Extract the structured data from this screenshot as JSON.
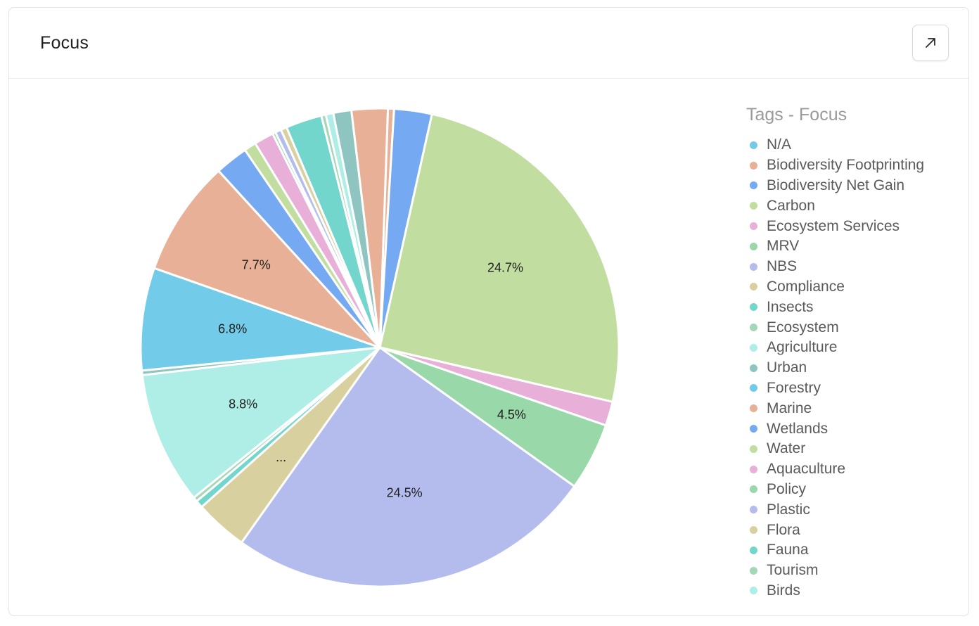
{
  "card": {
    "title": "Focus",
    "expand_icon": "arrow-up-right-icon"
  },
  "chart_data": {
    "type": "pie",
    "legend_title": "Tags - Focus",
    "legend_position": "right",
    "slices": [
      {
        "label": "Carbon",
        "value": 24.7,
        "color": "#c1dd9f",
        "display": "24.7%"
      },
      {
        "label": "Ecosystem Services",
        "value": 1.6,
        "color": "#e8b0d8",
        "display": ""
      },
      {
        "label": "MRV",
        "value": 4.5,
        "color": "#98d8a9",
        "display": "4.5%"
      },
      {
        "label": "NBS",
        "value": 24.5,
        "color": "#b4bcee",
        "display": "24.5%"
      },
      {
        "label": "Compliance",
        "value": 3.5,
        "color": "#d8d09e",
        "display": "..."
      },
      {
        "label": "Insects",
        "value": 0.5,
        "color": "#72d6cc",
        "display": ""
      },
      {
        "label": "Ecosystem",
        "value": 0.3,
        "color": "#a5d6b5",
        "display": ""
      },
      {
        "label": "Agriculture",
        "value": 8.8,
        "color": "#aeeee6",
        "display": "8.8%"
      },
      {
        "label": "Urban",
        "value": 0.3,
        "color": "#8fc5c0",
        "display": ""
      },
      {
        "label": "N/A",
        "value": 6.8,
        "color": "#71cbe9",
        "display": "6.8%"
      },
      {
        "label": "Biodiversity Footprinting",
        "value": 7.7,
        "color": "#e8b197",
        "display": "7.7%"
      },
      {
        "label": "Biodiversity Net Gain",
        "value": 2.2,
        "color": "#75aaf2",
        "display": ""
      },
      {
        "label": "Water",
        "value": 0.8,
        "color": "#c1dd9f",
        "display": ""
      },
      {
        "label": "Aquaculture",
        "value": 1.3,
        "color": "#e8b0d8",
        "display": ""
      },
      {
        "label": "Policy",
        "value": 0.2,
        "color": "#98d8a9",
        "display": ""
      },
      {
        "label": "Plastic",
        "value": 0.4,
        "color": "#b4bcee",
        "display": ""
      },
      {
        "label": "Flora",
        "value": 0.4,
        "color": "#d8d09e",
        "display": ""
      },
      {
        "label": "Fauna",
        "value": 2.4,
        "color": "#72d6cc",
        "display": ""
      },
      {
        "label": "Tourism",
        "value": 0.3,
        "color": "#a5d6b5",
        "display": ""
      },
      {
        "label": "Birds",
        "value": 0.5,
        "color": "#aeeee6",
        "display": ""
      },
      {
        "label": "Urban",
        "value": 1.2,
        "color": "#8fc5c0",
        "display": ""
      },
      {
        "label": "Marine",
        "value": 2.4,
        "color": "#e8b197",
        "display": ""
      },
      {
        "label": "Marine",
        "value": 0.4,
        "color": "#e8b197",
        "display": ""
      },
      {
        "label": "Wetlands",
        "value": 2.5,
        "color": "#75aaf2",
        "display": ""
      }
    ],
    "legend": [
      {
        "label": "N/A",
        "color": "#71cbe9"
      },
      {
        "label": "Biodiversity Footprinting",
        "color": "#e8b197"
      },
      {
        "label": "Biodiversity Net Gain",
        "color": "#75aaf2"
      },
      {
        "label": "Carbon",
        "color": "#c1dd9f"
      },
      {
        "label": "Ecosystem Services",
        "color": "#e8b0d8"
      },
      {
        "label": "MRV",
        "color": "#98d8a9"
      },
      {
        "label": "NBS",
        "color": "#b4bcee"
      },
      {
        "label": "Compliance",
        "color": "#d8d09e"
      },
      {
        "label": "Insects",
        "color": "#72d6cc"
      },
      {
        "label": "Ecosystem",
        "color": "#a5d6b5"
      },
      {
        "label": "Agriculture",
        "color": "#aeeee6"
      },
      {
        "label": "Urban",
        "color": "#8fc5c0"
      },
      {
        "label": "Forestry",
        "color": "#71cbe9"
      },
      {
        "label": "Marine",
        "color": "#e8b197"
      },
      {
        "label": "Wetlands",
        "color": "#75aaf2"
      },
      {
        "label": "Water",
        "color": "#c1dd9f"
      },
      {
        "label": "Aquaculture",
        "color": "#e8b0d8"
      },
      {
        "label": "Policy",
        "color": "#98d8a9"
      },
      {
        "label": "Plastic",
        "color": "#b4bcee"
      },
      {
        "label": "Flora",
        "color": "#d8d09e"
      },
      {
        "label": "Fauna",
        "color": "#72d6cc"
      },
      {
        "label": "Tourism",
        "color": "#a5d6b5"
      },
      {
        "label": "Birds",
        "color": "#aeeee6"
      }
    ]
  }
}
